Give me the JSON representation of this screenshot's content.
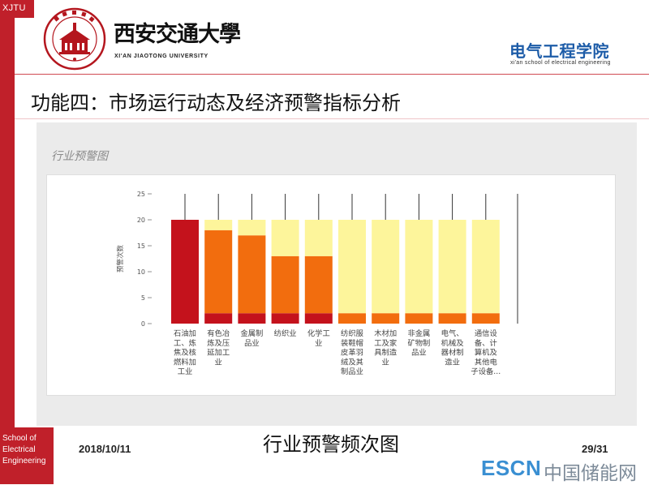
{
  "sidebar": {
    "top_label": "XJTU",
    "bottom_lines": [
      "School of",
      "Electrical",
      "Engineering"
    ]
  },
  "header": {
    "logo": "university-seal-icon",
    "university_name_cn": "西安交通大學",
    "university_name_en": "XI'AN JIAOTONG UNIVERSITY",
    "school_name_cn": "电气工程学院",
    "school_name_en": "xi'an school of electrical engineering"
  },
  "slide": {
    "title": "功能四：市场运行动态及经济预警指标分析",
    "caption": "行业预警频次图",
    "date": "2018/10/11",
    "page": "29/31"
  },
  "watermark": {
    "brand": "ESCN",
    "site": "中国储能网"
  },
  "colors": {
    "accent_red": "#c0202a",
    "school_blue": "#1d5ca8",
    "watermark_blue": "#3a8fd2",
    "panel_gray": "#ebebeb"
  },
  "chart_data": {
    "type": "bar",
    "stacked": true,
    "title": "行业预警图",
    "xlabel": "",
    "ylabel": "预警次数",
    "ylim": [
      0,
      25
    ],
    "yticks": [
      0,
      5,
      10,
      15,
      20,
      25
    ],
    "grid": false,
    "categories": [
      "石油加工、炼焦及核燃料加工业",
      "有色冶炼及压延加工业",
      "金属制品业",
      "纺织业",
      "化学工业",
      "纺织服装鞋帽皮革羽绒及其制品业",
      "木材加工及家具制造业",
      "非金属矿物制品业",
      "电气、机械及器材制造业",
      "通信设备、计算机及其他电子设备..."
    ],
    "series": [
      {
        "color": "#c4121c",
        "values": [
          20,
          2,
          2,
          2,
          2,
          0,
          0,
          0,
          0,
          0
        ]
      },
      {
        "color": "#f26d0e",
        "values": [
          0,
          16,
          15,
          11,
          11,
          2,
          2,
          2,
          2,
          2
        ]
      },
      {
        "color": "#fdf59b",
        "values": [
          0,
          2,
          3,
          7,
          7,
          18,
          18,
          18,
          18,
          18
        ]
      }
    ]
  }
}
